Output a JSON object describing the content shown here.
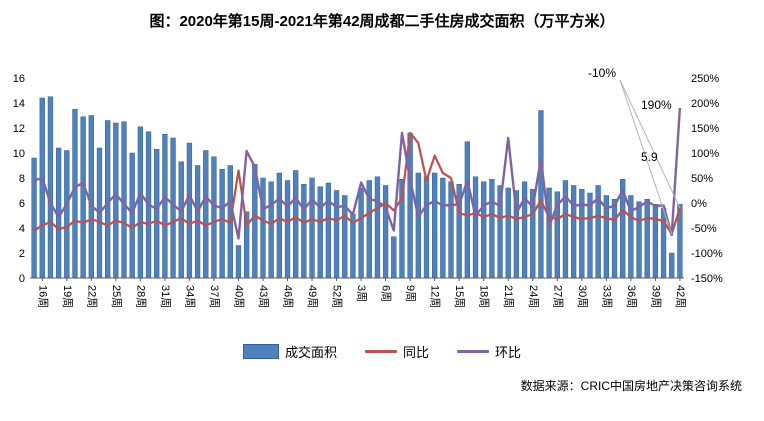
{
  "title": "图：2020年第15周-2021年第42周成都二手住房成交面积（万平方米）",
  "source": "数据来源：CRIC中国房地产决策咨询系统",
  "legend": {
    "bar": "成交面积",
    "yoy": "同比",
    "wow": "环比"
  },
  "colors": {
    "bar": "#4f81bd",
    "bar_border": "#36608f",
    "yoy": "#c0504d",
    "wow": "#8064a2",
    "axis": "#595959",
    "leader": "#b3b3b3"
  },
  "chart_data": {
    "type": "bar+line",
    "title": "图：2020年第15周-2021年第42周成都二手住房成交面积（万平方米）",
    "x_range_note": "80 weekly points: 2020 week 15 through 2021 week 42",
    "tick_start_index": 1,
    "tick_step": 3,
    "x_tick_labels": [
      "16周",
      "19周",
      "22周",
      "25周",
      "28周",
      "31周",
      "34周",
      "37周",
      "40周",
      "43周",
      "46周",
      "49周",
      "52周",
      "3周",
      "6周",
      "9周",
      "12周",
      "15周",
      "18周",
      "21周",
      "24周",
      "27周",
      "30周",
      "33周",
      "36周",
      "39周",
      "42周"
    ],
    "left_axis": {
      "min": 0,
      "max": 16,
      "step": 2
    },
    "right_axis": {
      "min": -150,
      "max": 250,
      "step": 50,
      "suffix": "%"
    },
    "left_ticks": [
      "0",
      "2",
      "4",
      "6",
      "8",
      "10",
      "12",
      "14",
      "16"
    ],
    "right_ticks": [
      "-150%",
      "-100%",
      "-50%",
      "0%",
      "50%",
      "100%",
      "150%",
      "200%",
      "250%"
    ],
    "legend_position": "bottom",
    "grid": false,
    "series": [
      {
        "name": "成交面积",
        "type": "bar",
        "axis": "left",
        "values": [
          9.6,
          14.4,
          14.5,
          10.4,
          10.2,
          13.5,
          12.9,
          13.0,
          10.4,
          12.6,
          12.4,
          12.5,
          10.0,
          12.1,
          11.7,
          10.3,
          11.5,
          11.2,
          9.3,
          10.8,
          9.0,
          10.2,
          9.7,
          8.7,
          9.0,
          2.6,
          5.3,
          9.1,
          8.0,
          7.7,
          8.4,
          7.8,
          8.6,
          7.5,
          8.0,
          7.3,
          7.6,
          7.0,
          6.6,
          5.1,
          7.2,
          7.8,
          8.1,
          7.4,
          3.3,
          7.9,
          11.6,
          8.4,
          8.1,
          8.4,
          8.0,
          7.7,
          7.5,
          10.9,
          8.1,
          7.7,
          7.9,
          7.4,
          7.2,
          7.0,
          7.7,
          7.1,
          13.4,
          7.2,
          6.9,
          7.8,
          7.4,
          7.1,
          6.8,
          7.4,
          6.6,
          6.3,
          7.9,
          6.6,
          6.1,
          6.3,
          5.9,
          5.6,
          2.0,
          5.9
        ]
      },
      {
        "name": "同比",
        "type": "line",
        "axis": "right",
        "values": [
          -55,
          -45,
          -38,
          -52,
          -48,
          -35,
          -40,
          -32,
          -38,
          -45,
          -35,
          -40,
          -50,
          -38,
          -42,
          -35,
          -45,
          -38,
          -30,
          -42,
          -35,
          -45,
          -38,
          -32,
          -40,
          65,
          -45,
          -25,
          -35,
          -42,
          -30,
          -38,
          -28,
          -40,
          -32,
          -38,
          -30,
          -35,
          -25,
          -40,
          -30,
          -20,
          -10,
          0,
          -15,
          10,
          140,
          120,
          45,
          95,
          60,
          50,
          -20,
          -25,
          -20,
          -28,
          -22,
          -30,
          -25,
          -32,
          -28,
          -22,
          5,
          -28,
          -32,
          -22,
          -28,
          -32,
          -30,
          -26,
          -30,
          -34,
          -14,
          -28,
          -36,
          -30,
          -32,
          -36,
          -62,
          -10
        ]
      },
      {
        "name": "环比",
        "type": "line",
        "axis": "right",
        "values": [
          45,
          50,
          0,
          -28,
          -2,
          32,
          40,
          -5,
          -20,
          0,
          18,
          -2,
          -20,
          20,
          -3,
          -12,
          12,
          -3,
          -17,
          16,
          -17,
          13,
          -5,
          -10,
          3,
          -71,
          104,
          72,
          -12,
          -4,
          9,
          -7,
          10,
          -13,
          7,
          -9,
          4,
          -8,
          -6,
          -23,
          41,
          8,
          4,
          -9,
          -55,
          140,
          47,
          -28,
          -4,
          4,
          -5,
          -4,
          -3,
          45,
          -26,
          -5,
          3,
          -6,
          130,
          -20,
          10,
          -8,
          88,
          -46,
          -4,
          13,
          -5,
          -4,
          -4,
          9,
          -11,
          -5,
          25,
          -16,
          -8,
          3,
          -6,
          -5,
          -64,
          190
        ]
      }
    ],
    "annotations": [
      {
        "text": "-10%",
        "x": 588,
        "y": 44,
        "targets": [
          {
            "series": 1,
            "index": 79
          },
          {
            "series": 1,
            "index": 78
          }
        ]
      },
      {
        "text": "190%",
        "x": 641,
        "y": 76,
        "targets": []
      },
      {
        "text": "5.9",
        "x": 641,
        "y": 128,
        "targets": []
      }
    ]
  }
}
